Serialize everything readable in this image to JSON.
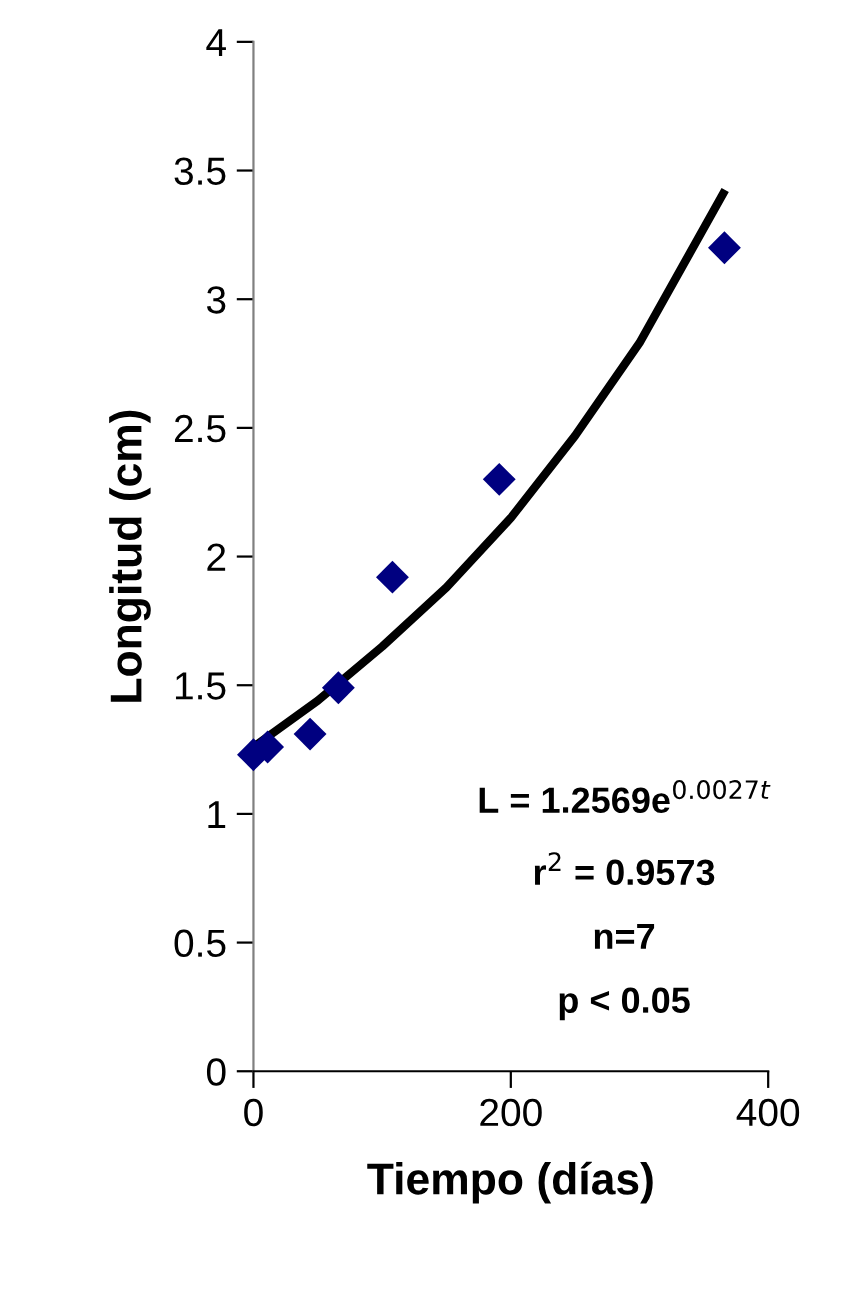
{
  "chart_data": {
    "type": "scatter",
    "xlabel": "Tiempo (días)",
    "ylabel": "Longitud (cm)",
    "xlim": [
      0,
      400
    ],
    "xticks": [
      0,
      200,
      400
    ],
    "ylim": [
      0,
      4
    ],
    "yticks": [
      0,
      0.5,
      1,
      1.5,
      2,
      2.5,
      3,
      3.5,
      4
    ],
    "grid": false,
    "legend": false,
    "series": [
      {
        "marker": "diamond",
        "color": "#000080",
        "x": [
          0,
          11,
          44,
          66,
          108,
          191,
          366
        ],
        "values": [
          1.23,
          1.26,
          1.31,
          1.49,
          1.92,
          2.3,
          3.2
        ]
      },
      {
        "type": "line",
        "color": "#000000",
        "line_style": "solid",
        "x": [
          0,
          50,
          100,
          150,
          200,
          250,
          300,
          365
        ],
        "values": [
          1.26,
          1.44,
          1.65,
          1.88,
          2.15,
          2.47,
          2.83,
          3.41
        ]
      }
    ],
    "annotations": [
      "L = 1.2569e$^{0.0027t}$",
      "r$^{2}$ = 0.9573",
      "n=7",
      "p < 0.05"
    ]
  }
}
